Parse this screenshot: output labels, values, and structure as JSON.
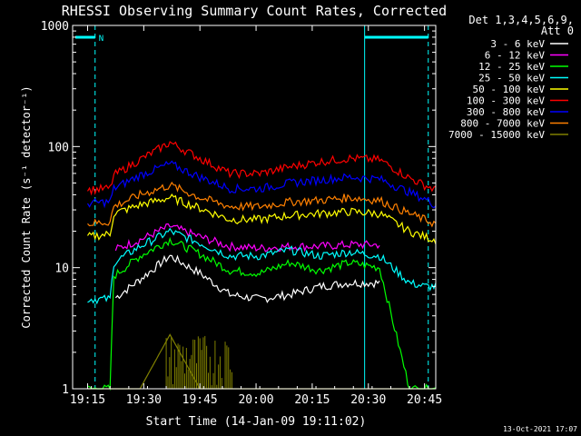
{
  "chart_data": {
    "type": "line",
    "title": "RHESSI Observing Summary Count Rates, Corrected",
    "xlabel": "Start Time (14-Jan-09 19:11:02)",
    "ylabel": "Corrected Count Rate (s⁻¹ detector⁻¹)",
    "yscale": "log",
    "ylim": [
      1,
      1000
    ],
    "xlim": [
      "19:11",
      "20:48"
    ],
    "x_ticks": [
      "19:15",
      "19:30",
      "19:45",
      "20:00",
      "20:15",
      "20:30",
      "20:45"
    ],
    "y_ticks": [
      "1",
      "10",
      "100",
      "1000"
    ],
    "legend_header": [
      "Det 1,3,4,5,6,9,",
      "Att 0"
    ],
    "legend_placement": "right",
    "footer_date": "13-Oct-2021 17:07",
    "flag_marker": "N",
    "grid": false,
    "x_minutes": [
      0,
      6,
      7,
      14,
      22,
      30,
      38,
      46,
      54,
      62,
      70,
      78,
      86,
      90,
      93
    ],
    "series": [
      {
        "name": "3 - 6 keV",
        "color": "#ffffff",
        "values": [
          null,
          null,
          5.5,
          8.0,
          12.5,
          9.0,
          6.0,
          5.5,
          6.0,
          7.0,
          7.5,
          7.5,
          null,
          null,
          null
        ]
      },
      {
        "name": "6 - 12 keV",
        "color": "#ff00ff",
        "values": [
          null,
          null,
          14,
          17,
          22,
          18,
          15,
          14.5,
          15,
          15,
          15.5,
          15.5,
          null,
          null,
          null
        ]
      },
      {
        "name": "12 - 25 keV",
        "color": "#00ff00",
        "values": [
          1,
          1,
          8.5,
          12.5,
          17,
          13,
          9.5,
          9.0,
          11,
          9.5,
          11,
          10,
          1,
          1,
          1
        ]
      },
      {
        "name": "25 - 50 keV",
        "color": "#00ffff",
        "values": [
          5.5,
          5.5,
          11,
          15,
          20,
          16,
          12.5,
          12.5,
          14,
          12.5,
          13.5,
          12.5,
          7.5,
          7.0,
          7.0
        ]
      },
      {
        "name": "50 - 100 keV",
        "color": "#ffff00",
        "values": [
          18,
          19,
          28,
          33,
          38,
          31,
          25,
          25,
          27,
          28,
          29,
          28,
          20,
          18,
          17
        ]
      },
      {
        "name": "100 - 300 keV",
        "color": "#ff0000",
        "values": [
          44,
          45,
          58,
          78,
          108,
          80,
          60,
          60,
          68,
          75,
          80,
          78,
          55,
          48,
          44
        ]
      },
      {
        "name": "300 - 800 keV",
        "color": "#0000ff",
        "values": [
          34,
          35,
          45,
          58,
          72,
          56,
          45,
          45,
          50,
          53,
          56,
          54,
          42,
          37,
          33
        ]
      },
      {
        "name": "800 - 7000 keV",
        "color": "#ff8000",
        "values": [
          23,
          24,
          32,
          40,
          48,
          38,
          32,
          32,
          35,
          36,
          38,
          36,
          28,
          25,
          23
        ]
      },
      {
        "name": "7000 - 15000 keV",
        "color": "#808000",
        "values": [
          1,
          1,
          1,
          1,
          2.8,
          1,
          1,
          1,
          1,
          1,
          1,
          1,
          1,
          1,
          1
        ]
      }
    ]
  }
}
